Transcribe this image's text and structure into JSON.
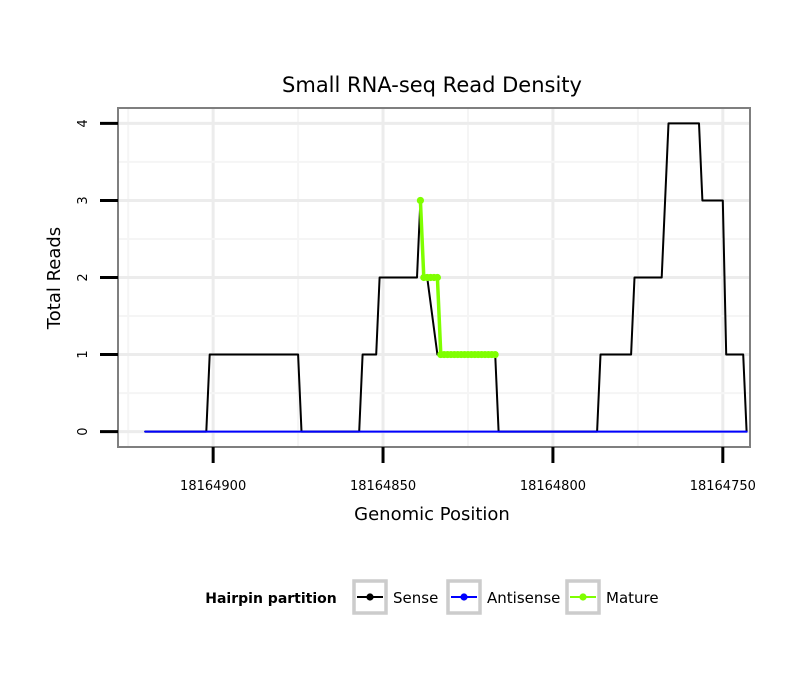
{
  "chart_data": {
    "type": "line",
    "title": "Small RNA-seq Read Density",
    "xlabel": "Genomic Position",
    "ylabel": "Total Reads",
    "x_reversed": true,
    "xlim": [
      18164928,
      18164742
    ],
    "ylim": [
      -0.2,
      4.2
    ],
    "x_ticks": [
      18164900,
      18164850,
      18164800,
      18164750
    ],
    "x_tick_labels": [
      "18164900",
      "18164850",
      "18164800",
      "18164750"
    ],
    "y_ticks": [
      0,
      1,
      2,
      3,
      4
    ],
    "y_tick_labels": [
      "0",
      "1",
      "2",
      "3",
      "4"
    ],
    "grid": true,
    "legend": {
      "title": "Hairpin partition",
      "position": "bottom",
      "entries": [
        {
          "label": "Sense",
          "color": "#000000"
        },
        {
          "label": "Antisense",
          "color": "#0000ff"
        },
        {
          "label": "Mature",
          "color": "#7fff00"
        }
      ]
    },
    "series": [
      {
        "name": "Sense",
        "color": "#000000",
        "x": [
          18164920,
          18164902,
          18164901,
          18164900,
          18164875,
          18164874,
          18164873,
          18164857,
          18164856,
          18164852,
          18164851,
          18164840,
          18164839,
          18164838,
          18164837,
          18164834,
          18164832,
          18164831,
          18164830,
          18164817,
          18164816,
          18164815,
          18164787,
          18164786,
          18164777,
          18164776,
          18164768,
          18164766,
          18164757,
          18164756,
          18164750,
          18164749,
          18164744,
          18164743
        ],
        "y": [
          0,
          0,
          1,
          1,
          1,
          0,
          0,
          0,
          1,
          1,
          2,
          2,
          3,
          2,
          2,
          1,
          1,
          1,
          1,
          1,
          0,
          0,
          0,
          1,
          1,
          2,
          2,
          4,
          4,
          3,
          3,
          1,
          1,
          0
        ]
      },
      {
        "name": "Antisense",
        "color": "#0000ff",
        "x": [
          18164920,
          18164743
        ],
        "y": [
          0,
          0
        ]
      },
      {
        "name": "Mature",
        "color": "#7fff00",
        "x": [
          18164839,
          18164838,
          18164837,
          18164836,
          18164835,
          18164834,
          18164833,
          18164832,
          18164831,
          18164830,
          18164829,
          18164828,
          18164827,
          18164826,
          18164825,
          18164824,
          18164823,
          18164822,
          18164821,
          18164820,
          18164819,
          18164818,
          18164817
        ],
        "y": [
          3,
          2,
          2,
          2,
          2,
          2,
          1,
          1,
          1,
          1,
          1,
          1,
          1,
          1,
          1,
          1,
          1,
          1,
          1,
          1,
          1,
          1,
          1
        ]
      }
    ]
  }
}
